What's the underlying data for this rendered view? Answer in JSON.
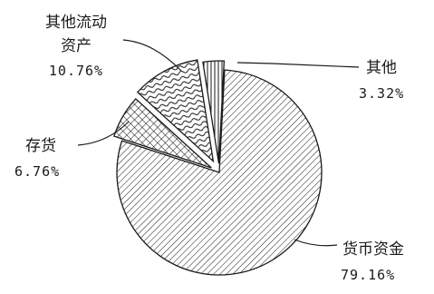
{
  "chart_data": {
    "type": "pie",
    "slices": [
      {
        "name": "货币资金",
        "value": 79.16,
        "label": "79.16%",
        "pattern": "diag-fine"
      },
      {
        "name": "存货",
        "value": 6.76,
        "label": "6.76%",
        "pattern": "crosshatch"
      },
      {
        "name": "其他流动资产",
        "name_lines": [
          "其他流动",
          "资产"
        ],
        "value": 10.76,
        "label": "10.76%",
        "pattern": "wavy"
      },
      {
        "name": "其他",
        "value": 3.32,
        "label": "3.32%",
        "pattern": "vertical"
      }
    ],
    "exploded": true,
    "legend": "none",
    "colors": {
      "ink": "#1a1a1a",
      "background": "#ffffff"
    }
  }
}
